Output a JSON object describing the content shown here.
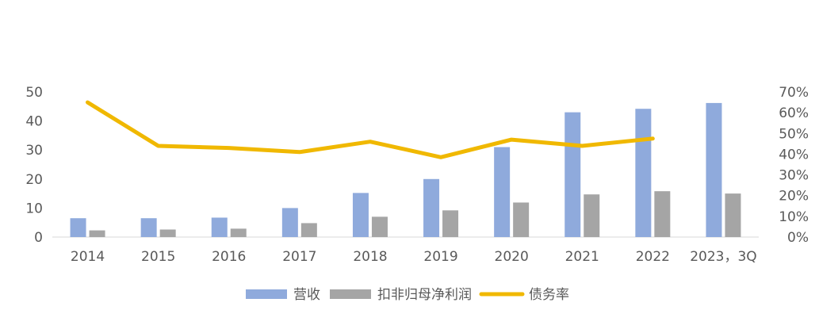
{
  "chart_data": {
    "type": "bar",
    "categories": [
      "2014",
      "2015",
      "2016",
      "2017",
      "2018",
      "2019",
      "2020",
      "2021",
      "2022",
      "2023，3Q"
    ],
    "series": [
      {
        "name": "营收",
        "type": "bar",
        "axis": "left",
        "color": "#8faadc",
        "values": [
          6.5,
          6.5,
          6.7,
          10,
          15.2,
          20,
          31,
          43,
          44.2,
          46.2
        ]
      },
      {
        "name": "扣非归母净利润",
        "type": "bar",
        "axis": "left",
        "color": "#a5a5a5",
        "values": [
          2.3,
          2.6,
          2.9,
          4.8,
          7,
          9.2,
          11.9,
          14.7,
          15.8,
          15
        ]
      },
      {
        "name": "债务率",
        "type": "line",
        "axis": "right",
        "color": "#f0b800",
        "values": [
          0.65,
          0.44,
          0.43,
          0.41,
          0.46,
          0.385,
          0.47,
          0.44,
          0.475,
          null
        ]
      }
    ],
    "y_left": {
      "min": 0,
      "max": 50,
      "ticks": [
        "0",
        "10",
        "20",
        "30",
        "40",
        "50"
      ]
    },
    "y_right": {
      "min": 0,
      "max": 0.7,
      "ticks": [
        "0%",
        "10%",
        "20%",
        "30%",
        "40%",
        "50%",
        "60%",
        "70%"
      ]
    },
    "grid": false,
    "legend_position": "bottom-center"
  }
}
